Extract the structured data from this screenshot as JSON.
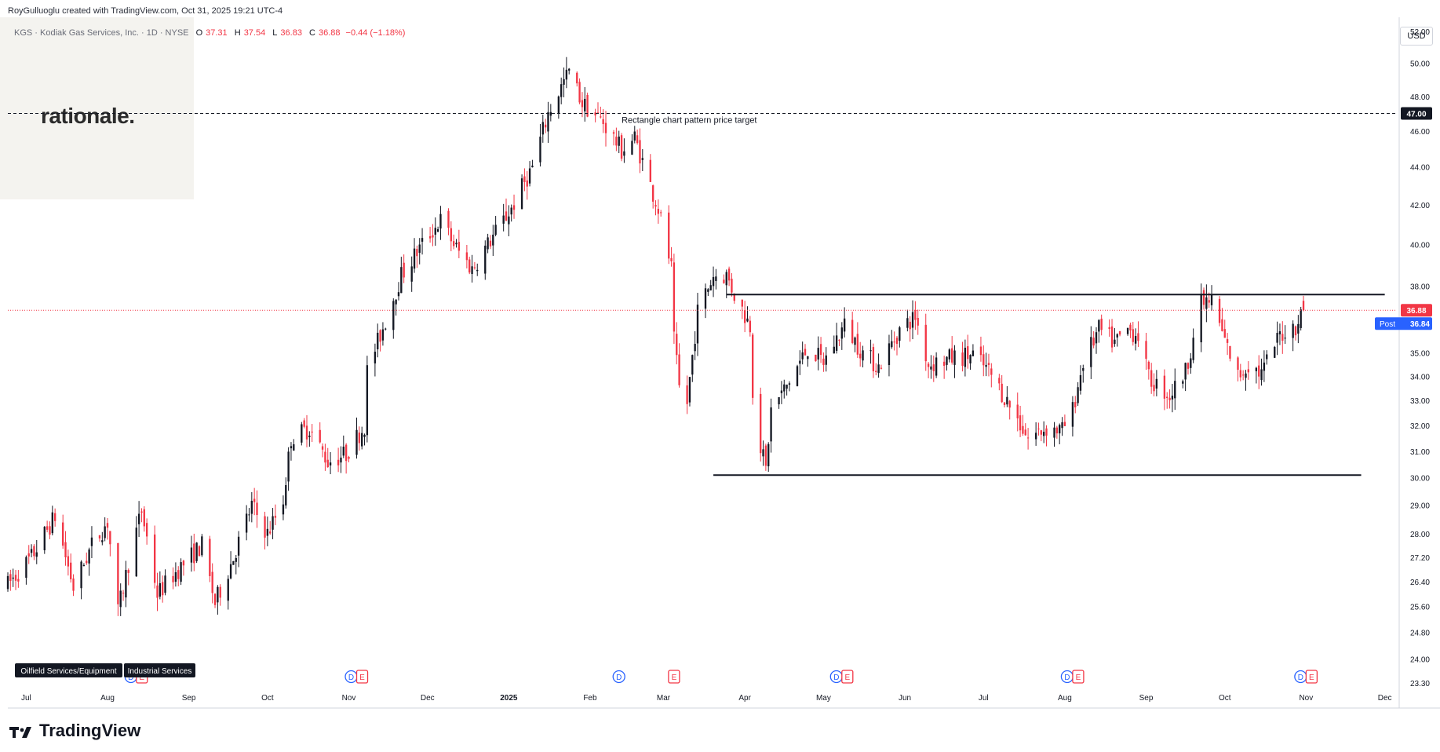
{
  "header": {
    "credit": "RoyGulluoglu created with TradingView.com, Oct 31, 2025 19:21 UTC-4",
    "symbol": "KGS · Kodiak Gas Services, Inc. · 1D · NYSE",
    "ohlc": {
      "o_label": "O",
      "o": "37.31",
      "h_label": "H",
      "h": "37.54",
      "l_label": "L",
      "l": "36.83",
      "c_label": "C",
      "c": "36.88",
      "change": "−0.44 (−1.18%)"
    }
  },
  "branding": {
    "logo": "rationale.",
    "footer": "TradingView"
  },
  "currency": "USD",
  "colors": {
    "up": "#131722",
    "down": "#f23645",
    "last_price": "#f23645",
    "post": "#2962ff",
    "dashed": "#131722"
  },
  "chart_data": {
    "type": "candlestick",
    "title": "KGS · Kodiak Gas Services, Inc. · 1D · NYSE",
    "xlabel": "",
    "ylabel": "",
    "x_tick_labels": [
      "Jul",
      "Aug",
      "Sep",
      "Oct",
      "Nov",
      "Dec",
      "2025",
      "Feb",
      "Mar",
      "Apr",
      "May",
      "Jun",
      "Jul",
      "Aug",
      "Sep",
      "Oct",
      "Nov",
      "Dec"
    ],
    "y_tick_labels": [
      "52.00",
      "50.00",
      "48.00",
      "46.00",
      "44.00",
      "42.00",
      "40.00",
      "38.00",
      "35.00",
      "34.00",
      "33.00",
      "32.00",
      "31.00",
      "30.00",
      "29.00",
      "28.00",
      "27.20",
      "26.40",
      "25.60",
      "24.80",
      "24.00",
      "23.30"
    ],
    "y_ticks": [
      52,
      50,
      48,
      46,
      44,
      42,
      40,
      38,
      35,
      34,
      33,
      32,
      31,
      30,
      29,
      28,
      27.2,
      26.4,
      25.6,
      24.8,
      24,
      23.3
    ],
    "y_scale": "log",
    "ylim": [
      23.3,
      52
    ],
    "grid": false,
    "range": {
      "start": "2024-06-24",
      "end": "2025-12-05"
    },
    "anchors": [
      [
        "2024-06-24",
        26.3
      ],
      [
        "2024-07-03",
        27.2
      ],
      [
        "2024-07-12",
        28.6
      ],
      [
        "2024-07-19",
        26.2
      ],
      [
        "2024-07-26",
        27.6
      ],
      [
        "2024-08-01",
        28.4
      ],
      [
        "2024-08-05",
        25.4
      ],
      [
        "2024-08-09",
        27.0
      ],
      [
        "2024-08-14",
        28.8
      ],
      [
        "2024-08-20",
        26.0
      ],
      [
        "2024-08-28",
        26.8
      ],
      [
        "2024-09-06",
        27.6
      ],
      [
        "2024-09-11",
        25.7
      ],
      [
        "2024-09-18",
        27.2
      ],
      [
        "2024-09-25",
        29.0
      ],
      [
        "2024-10-01",
        28.0
      ],
      [
        "2024-10-07",
        29.2
      ],
      [
        "2024-10-10",
        31.5
      ],
      [
        "2024-10-17",
        31.9
      ],
      [
        "2024-10-24",
        30.6
      ],
      [
        "2024-10-31",
        30.9
      ],
      [
        "2024-11-07",
        32.0
      ],
      [
        "2024-11-08",
        34.2
      ],
      [
        "2024-11-15",
        36.4
      ],
      [
        "2024-11-21",
        38.5
      ],
      [
        "2024-11-29",
        40.0
      ],
      [
        "2024-12-06",
        41.2
      ],
      [
        "2024-12-12",
        39.8
      ],
      [
        "2024-12-18",
        38.8
      ],
      [
        "2024-12-24",
        40.0
      ],
      [
        "2025-01-02",
        41.8
      ],
      [
        "2025-01-10",
        44.0
      ],
      [
        "2025-01-16",
        47.0
      ],
      [
        "2025-01-24",
        49.5
      ],
      [
        "2025-01-29",
        47.6
      ],
      [
        "2025-02-06",
        46.5
      ],
      [
        "2025-02-13",
        44.9
      ],
      [
        "2025-02-18",
        45.6
      ],
      [
        "2025-02-24",
        43.0
      ],
      [
        "2025-02-27",
        41.8
      ],
      [
        "2025-03-04",
        38.8
      ],
      [
        "2025-03-05",
        35.5
      ],
      [
        "2025-03-07",
        33.5
      ],
      [
        "2025-03-10",
        32.9
      ],
      [
        "2025-03-14",
        36.8
      ],
      [
        "2025-03-20",
        38.5
      ],
      [
        "2025-03-25",
        38.5
      ],
      [
        "2025-03-28",
        37.6
      ],
      [
        "2025-04-03",
        36.2
      ],
      [
        "2025-04-04",
        33.5
      ],
      [
        "2025-04-07",
        31.2
      ],
      [
        "2025-04-09",
        30.3
      ],
      [
        "2025-04-11",
        32.6
      ],
      [
        "2025-04-17",
        33.6
      ],
      [
        "2025-04-25",
        35.2
      ],
      [
        "2025-05-01",
        34.6
      ],
      [
        "2025-05-09",
        36.2
      ],
      [
        "2025-05-16",
        35.0
      ],
      [
        "2025-05-22",
        34.4
      ],
      [
        "2025-05-30",
        36.0
      ],
      [
        "2025-06-05",
        36.6
      ],
      [
        "2025-06-10",
        34.5
      ],
      [
        "2025-06-20",
        34.8
      ],
      [
        "2025-06-27",
        34.9
      ],
      [
        "2025-07-03",
        34.2
      ],
      [
        "2025-07-11",
        32.8
      ],
      [
        "2025-07-18",
        31.5
      ],
      [
        "2025-07-25",
        31.9
      ],
      [
        "2025-07-31",
        31.8
      ],
      [
        "2025-08-04",
        32.6
      ],
      [
        "2025-08-08",
        34.6
      ],
      [
        "2025-08-14",
        36.0
      ],
      [
        "2025-08-20",
        35.4
      ],
      [
        "2025-08-25",
        36.0
      ],
      [
        "2025-08-29",
        35.8
      ],
      [
        "2025-09-02",
        33.9
      ],
      [
        "2025-09-10",
        33.2
      ],
      [
        "2025-09-16",
        34.2
      ],
      [
        "2025-09-22",
        37.2
      ],
      [
        "2025-09-26",
        37.3
      ],
      [
        "2025-10-01",
        35.5
      ],
      [
        "2025-10-06",
        34.0
      ],
      [
        "2025-10-10",
        34.5
      ],
      [
        "2025-10-15",
        34.1
      ],
      [
        "2025-10-22",
        35.8
      ],
      [
        "2025-10-28",
        36.2
      ],
      [
        "2025-10-31",
        36.88
      ]
    ],
    "last": {
      "date": "2025-10-31",
      "open": 37.31,
      "high": 37.54,
      "low": 36.83,
      "close": 36.88
    },
    "price_target": {
      "value": 47.0,
      "label": "47.00",
      "annotation": "Rectangle chart pattern price target"
    },
    "rectangle": {
      "top": 37.6,
      "bottom": 30.1,
      "start": "2025-03-25",
      "end": "2025-12-01"
    },
    "last_price_label": "36.88",
    "post_label": "Post",
    "post_price": "36.84",
    "events": [
      {
        "date": "2024-08-12",
        "labels": [
          "D",
          "E"
        ]
      },
      {
        "date": "2024-11-04",
        "labels": [
          "D",
          "E"
        ]
      },
      {
        "date": "2025-02-12",
        "labels": [
          "D"
        ]
      },
      {
        "date": "2025-03-05",
        "labels": [
          "E"
        ]
      },
      {
        "date": "2025-05-08",
        "labels": [
          "D",
          "E"
        ]
      },
      {
        "date": "2025-08-04",
        "labels": [
          "D",
          "E"
        ]
      },
      {
        "date": "2025-11-01",
        "labels": [
          "D",
          "E"
        ]
      }
    ],
    "sector_tags": [
      "Oilfield Services/Equipment",
      "Industrial Services"
    ]
  }
}
